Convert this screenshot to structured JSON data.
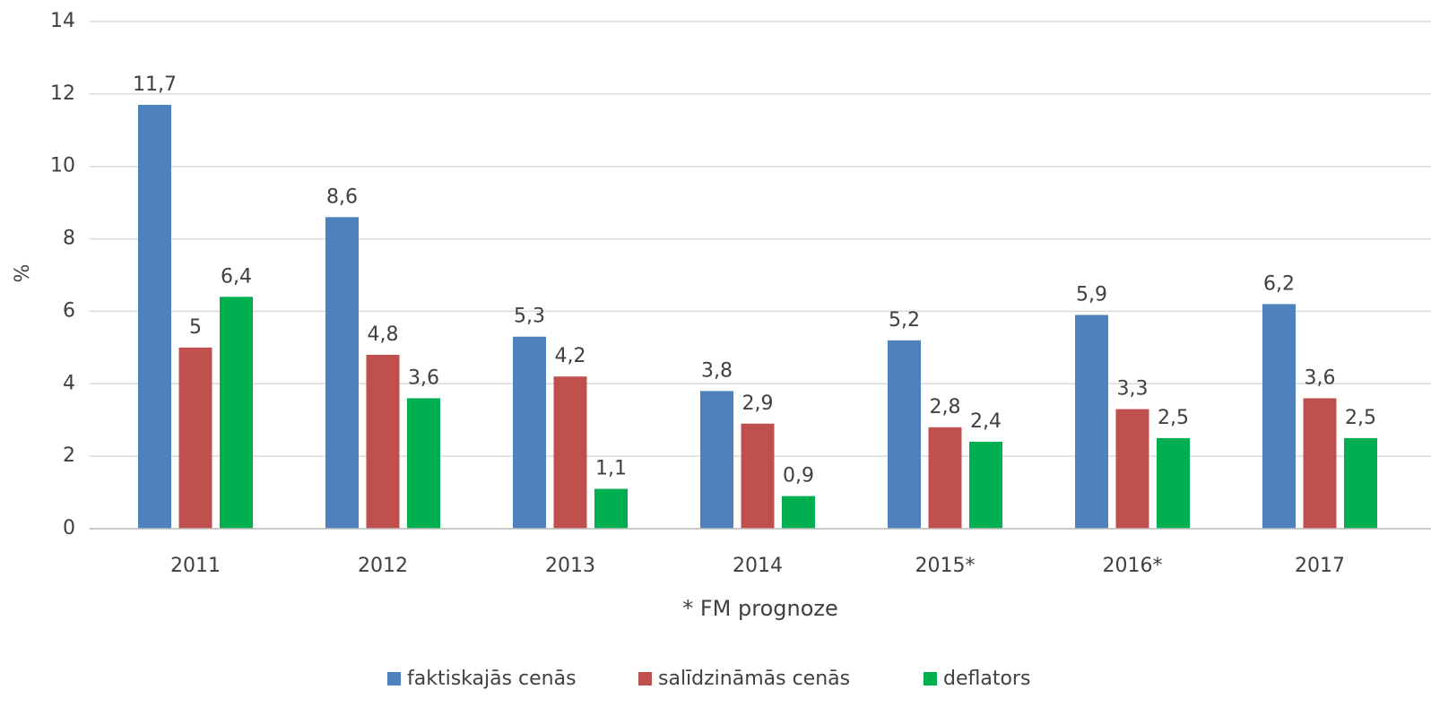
{
  "chart_data": {
    "type": "bar",
    "categories": [
      "2011",
      "2012",
      "2013",
      "2014",
      "2015*",
      "2016*",
      "2017"
    ],
    "x_label": "* FM prognoze",
    "y_label": "%",
    "ylim": [
      0,
      14
    ],
    "yticks": [
      0,
      2,
      4,
      6,
      8,
      10,
      12,
      14
    ],
    "grid": true,
    "legend": "bottom",
    "series": [
      {
        "name": "faktiskajās cenās",
        "color": "#4f81bd",
        "values": [
          11.7,
          8.6,
          5.3,
          3.8,
          5.2,
          5.9,
          6.2
        ],
        "value_labels": [
          "11,7",
          "8,6",
          "5,3",
          "3,8",
          "5,2",
          "5,9",
          "6,2"
        ]
      },
      {
        "name": "salīdzināmās cenās",
        "color": "#c0504d",
        "values": [
          5,
          4.8,
          4.2,
          2.9,
          2.8,
          3.3,
          3.6
        ],
        "value_labels": [
          "5",
          "4,8",
          "4,2",
          "2,9",
          "2,8",
          "3,3",
          "3,6"
        ]
      },
      {
        "name": "deflators",
        "color": "#00b050",
        "values": [
          6.4,
          3.6,
          1.1,
          0.9,
          2.4,
          2.5,
          2.5
        ],
        "value_labels": [
          "6,4",
          "3,6",
          "1,1",
          "0,9",
          "2,4",
          "2,5",
          "2,5"
        ]
      }
    ]
  }
}
